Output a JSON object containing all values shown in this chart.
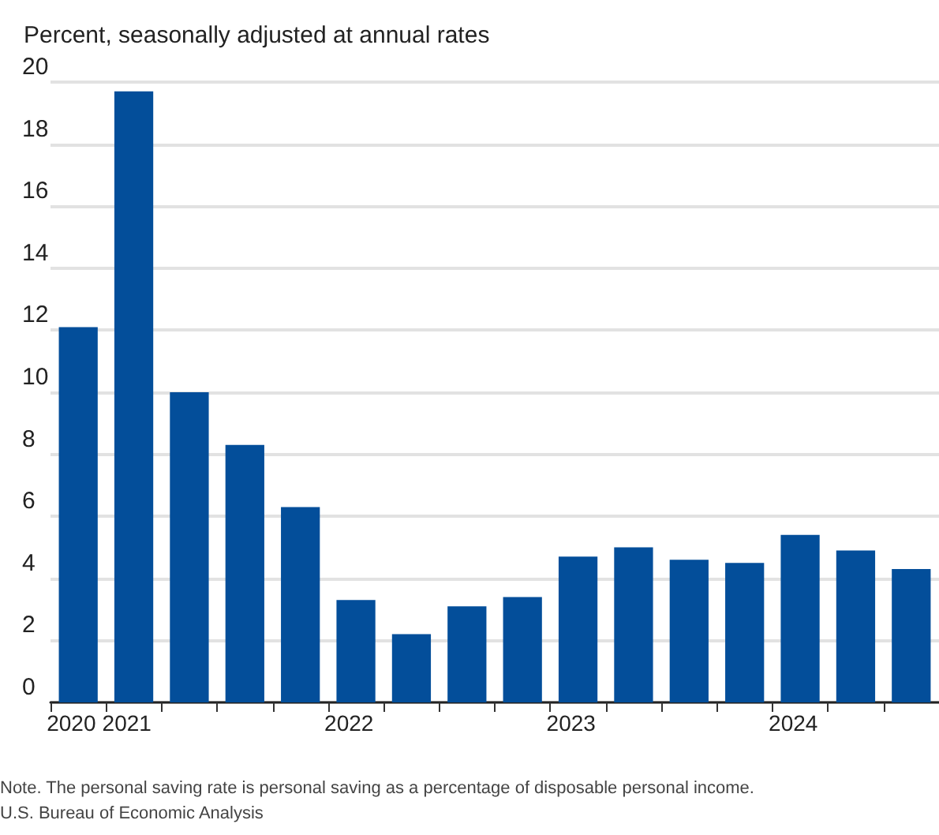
{
  "chart_data": {
    "type": "bar",
    "ylabel": "Percent, seasonally adjusted at annual rates",
    "categories": [
      "2020",
      "2021",
      null,
      null,
      null,
      "2022",
      null,
      null,
      null,
      "2023",
      null,
      null,
      null,
      "2024",
      null,
      null
    ],
    "values": [
      12.1,
      19.7,
      10.0,
      8.3,
      6.3,
      3.3,
      2.2,
      3.1,
      3.4,
      4.7,
      5.0,
      4.6,
      4.5,
      5.4,
      4.9,
      4.3
    ],
    "color": "#034e9a",
    "ylim": [
      0,
      20
    ],
    "yticks": [
      0,
      2,
      4,
      6,
      8,
      10,
      12,
      14,
      16,
      18,
      20
    ],
    "grid": "y",
    "annotations": [
      "Note. The personal saving rate is personal saving as a percentage of disposable personal income.",
      "U.S. Bureau of Economic Analysis"
    ]
  }
}
